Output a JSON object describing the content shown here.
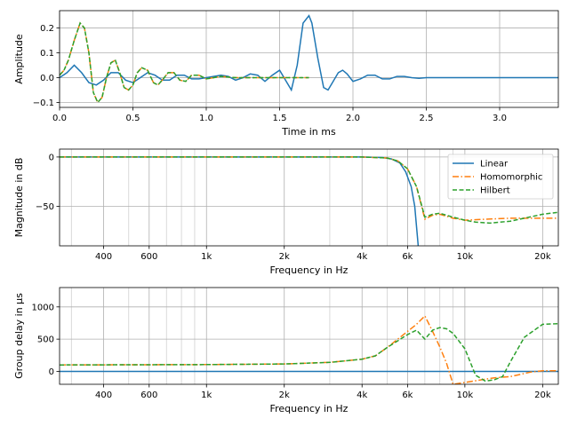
{
  "chart_data": [
    {
      "type": "line",
      "xlabel": "Time in ms",
      "ylabel": "Amplitude",
      "xlim": [
        0,
        3.4
      ],
      "ylim": [
        -0.12,
        0.27
      ],
      "xticks": [
        0.0,
        0.5,
        1.0,
        1.5,
        2.0,
        2.5,
        3.0
      ],
      "xtick_labels": [
        "0.0",
        "0.5",
        "1.0",
        "1.5",
        "2.0",
        "2.5",
        "3.0"
      ],
      "yticks": [
        -0.1,
        0.0,
        0.1,
        0.2
      ],
      "ytick_labels": [
        "−0.1",
        "0.0",
        "0.1",
        "0.2"
      ],
      "grid": true,
      "series": [
        {
          "color": "#1f77b4",
          "style": "solid",
          "x": [
            0,
            0.05,
            0.1,
            0.15,
            0.2,
            0.25,
            0.3,
            0.35,
            0.4,
            0.45,
            0.5,
            0.55,
            0.6,
            0.65,
            0.7,
            0.75,
            0.8,
            0.85,
            0.9,
            0.95,
            1.0,
            1.05,
            1.1,
            1.15,
            1.2,
            1.25,
            1.3,
            1.35,
            1.4,
            1.45,
            1.5,
            1.55,
            1.58,
            1.62,
            1.66,
            1.7,
            1.72,
            1.76,
            1.8,
            1.83,
            1.86,
            1.9,
            1.93,
            1.96,
            2.0,
            2.05,
            2.1,
            2.15,
            2.2,
            2.25,
            2.3,
            2.35,
            2.4,
            2.45,
            2.5,
            2.6,
            2.8,
            3.0,
            3.2,
            3.4
          ],
          "y": [
            0,
            0.02,
            0.05,
            0.02,
            -0.02,
            -0.03,
            -0.01,
            0.02,
            0.02,
            -0.01,
            -0.02,
            0.0,
            0.02,
            0.01,
            -0.01,
            -0.01,
            0.01,
            0.01,
            -0.005,
            -0.005,
            0.0,
            0.005,
            0.01,
            0.005,
            -0.01,
            0.0,
            0.015,
            0.01,
            -0.015,
            0.01,
            0.03,
            -0.02,
            -0.05,
            0.05,
            0.22,
            0.25,
            0.22,
            0.08,
            -0.04,
            -0.05,
            -0.02,
            0.02,
            0.03,
            0.015,
            -0.015,
            -0.005,
            0.01,
            0.01,
            -0.005,
            -0.005,
            0.005,
            0.005,
            0.0,
            -0.003,
            0.0,
            0.0,
            0.0,
            0.0,
            0.0,
            0.0
          ]
        },
        {
          "color": "#ff7f0e",
          "style": "dashdot",
          "x": [
            0,
            0.03,
            0.06,
            0.1,
            0.14,
            0.17,
            0.2,
            0.23,
            0.26,
            0.29,
            0.32,
            0.35,
            0.38,
            0.41,
            0.44,
            0.47,
            0.5,
            0.53,
            0.56,
            0.6,
            0.64,
            0.67,
            0.7,
            0.74,
            0.78,
            0.82,
            0.86,
            0.9,
            0.95,
            1.0,
            1.1,
            1.2,
            1.3,
            1.4,
            1.5,
            1.6,
            1.7
          ],
          "y": [
            0.01,
            0.03,
            0.07,
            0.15,
            0.22,
            0.2,
            0.1,
            -0.06,
            -0.1,
            -0.08,
            0.0,
            0.06,
            0.07,
            0.02,
            -0.04,
            -0.05,
            -0.03,
            0.02,
            0.04,
            0.03,
            -0.02,
            -0.03,
            -0.01,
            0.02,
            0.02,
            -0.01,
            -0.015,
            0.01,
            0.01,
            -0.005,
            0.005,
            0.0,
            0.0,
            0.0,
            0.0,
            0.0,
            0.0
          ]
        },
        {
          "color": "#2ca02c",
          "style": "dashed",
          "x": [
            0,
            0.03,
            0.06,
            0.1,
            0.14,
            0.17,
            0.2,
            0.23,
            0.26,
            0.29,
            0.32,
            0.35,
            0.38,
            0.41,
            0.44,
            0.47,
            0.5,
            0.53,
            0.56,
            0.6,
            0.64,
            0.67,
            0.7,
            0.74,
            0.78,
            0.82,
            0.86,
            0.9,
            0.95,
            1.0,
            1.1,
            1.2,
            1.3,
            1.4,
            1.5,
            1.6,
            1.7
          ],
          "y": [
            0.01,
            0.03,
            0.07,
            0.15,
            0.22,
            0.2,
            0.1,
            -0.06,
            -0.1,
            -0.08,
            0.0,
            0.06,
            0.07,
            0.02,
            -0.04,
            -0.05,
            -0.03,
            0.02,
            0.04,
            0.03,
            -0.02,
            -0.03,
            -0.01,
            0.02,
            0.02,
            -0.01,
            -0.015,
            0.01,
            0.01,
            -0.005,
            0.005,
            0.0,
            0.0,
            0.0,
            0.0,
            0.0,
            0.0
          ]
        }
      ]
    },
    {
      "type": "line",
      "xscale": "log",
      "xlabel": "Frequency in Hz",
      "ylabel": "Magnitude in dB",
      "xlim": [
        270,
        23000
      ],
      "ylim": [
        -90,
        8
      ],
      "xticks": [
        400,
        600,
        1000,
        2000,
        4000,
        6000,
        10000,
        20000
      ],
      "xtick_labels": [
        "400",
        "600",
        "1k",
        "2k",
        "4k",
        "6k",
        "10k",
        "20k"
      ],
      "yticks": [
        -50,
        0
      ],
      "ytick_labels": [
        "−50",
        "0"
      ],
      "grid": true,
      "legend": {
        "position": "top-right",
        "entries": [
          "Linear",
          "Homomorphic",
          "Hilbert"
        ]
      },
      "series": [
        {
          "name": "Linear",
          "color": "#1f77b4",
          "style": "solid",
          "x": [
            270,
            1000,
            4000,
            4800,
            5200,
            5600,
            5900,
            6200,
            6400,
            6600
          ],
          "y": [
            0,
            0,
            0,
            -0.5,
            -2,
            -6,
            -15,
            -30,
            -50,
            -90
          ]
        },
        {
          "name": "Homomorphic",
          "color": "#ff7f0e",
          "style": "dashdot",
          "x": [
            270,
            1000,
            4000,
            5000,
            5500,
            6000,
            6500,
            7000,
            7500,
            8000,
            9000,
            10000,
            12000,
            15000,
            20000,
            23000
          ],
          "y": [
            0,
            0,
            0,
            -1,
            -4,
            -12,
            -30,
            -63,
            -59,
            -58,
            -62,
            -64,
            -63,
            -62,
            -62,
            -62
          ]
        },
        {
          "name": "Hilbert",
          "color": "#2ca02c",
          "style": "dashed",
          "x": [
            270,
            1000,
            4000,
            5000,
            5500,
            6000,
            6500,
            7000,
            7500,
            8000,
            9000,
            10000,
            11000,
            12500,
            15000,
            20000,
            23000
          ],
          "y": [
            0,
            0,
            0,
            -1,
            -4,
            -12,
            -30,
            -61,
            -58,
            -57,
            -61,
            -64,
            -66,
            -67,
            -65,
            -58,
            -56
          ]
        }
      ]
    },
    {
      "type": "line",
      "xscale": "log",
      "xlabel": "Frequency in Hz",
      "ylabel": "Group delay in µs",
      "xlim": [
        270,
        23000
      ],
      "ylim": [
        -200,
        1300
      ],
      "xticks": [
        400,
        600,
        1000,
        2000,
        4000,
        6000,
        10000,
        20000
      ],
      "xtick_labels": [
        "400",
        "600",
        "1k",
        "2k",
        "4k",
        "6k",
        "10k",
        "20k"
      ],
      "yticks": [
        0,
        500,
        1000
      ],
      "ytick_labels": [
        "0",
        "500",
        "1000"
      ],
      "grid": true,
      "series": [
        {
          "color": "#1f77b4",
          "style": "solid",
          "x": [
            270,
            23000
          ],
          "y": [
            0,
            0
          ]
        },
        {
          "color": "#ff7f0e",
          "style": "dashdot",
          "x": [
            270,
            1000,
            2000,
            3000,
            4000,
            4500,
            5000,
            6000,
            6500,
            7000,
            7500,
            8000,
            8500,
            9000,
            13000,
            15000,
            18000,
            20000,
            23000
          ],
          "y": [
            100,
            105,
            115,
            140,
            190,
            240,
            370,
            620,
            730,
            860,
            620,
            380,
            120,
            -200,
            -100,
            -80,
            -10,
            10,
            10
          ]
        },
        {
          "color": "#2ca02c",
          "style": "dashed",
          "x": [
            270,
            1000,
            2000,
            3000,
            4000,
            4500,
            5000,
            6000,
            6500,
            7000,
            7500,
            8000,
            8500,
            9000,
            10000,
            11000,
            12000,
            13000,
            14000,
            15000,
            17000,
            20000,
            23000
          ],
          "y": [
            100,
            105,
            115,
            140,
            190,
            240,
            370,
            570,
            640,
            500,
            640,
            680,
            660,
            590,
            350,
            -60,
            -150,
            -130,
            -80,
            150,
            530,
            730,
            740
          ]
        }
      ]
    }
  ]
}
